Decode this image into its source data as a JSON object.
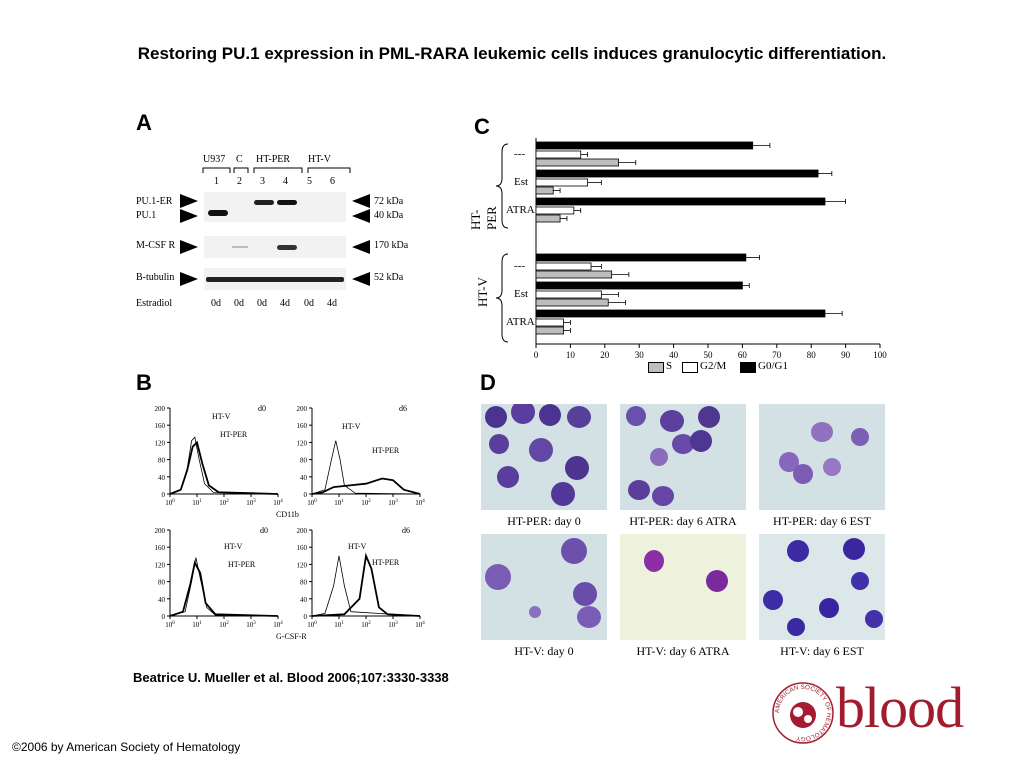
{
  "title": "Restoring PU.1 expression in PML-RARA leukemic cells induces granulocytic differentiation.",
  "citation": "Beatrice U. Mueller et al. Blood 2006;107:3330-3338",
  "copyright": "©2006 by American Society of Hematology",
  "logo": {
    "word": "blood",
    "ring_text": "AMERICAN SOCIETY OF HEMATOLOGY"
  },
  "panelA": {
    "letter": "A",
    "group_labels": [
      "U937",
      "C",
      "HT-PER",
      "HT-V"
    ],
    "lanes": [
      "1",
      "2",
      "3",
      "4",
      "5",
      "6"
    ],
    "row_labels": [
      "PU.1-ER",
      "PU.1",
      "M-CSF R",
      "B-tubulin"
    ],
    "kda_labels": [
      "72 kDa",
      "40 kDa",
      "170 kDa",
      "52 kDa"
    ],
    "estradiol_label": "Estradiol",
    "estradiol_values": [
      "0d",
      "0d",
      "0d",
      "4d",
      "0d",
      "4d"
    ]
  },
  "panelB": {
    "letter": "B",
    "y_ticks": [
      "200",
      "160",
      "120",
      "80",
      "40",
      "0"
    ],
    "plots": [
      {
        "tag": "d0",
        "labels": [
          "HT-V",
          "HT-PER"
        ]
      },
      {
        "tag": "d6",
        "labels": [
          "HT-V",
          "HT-PER"
        ]
      },
      {
        "tag": "d0",
        "labels": [
          "HT-V",
          "HT-PER"
        ]
      },
      {
        "tag": "d6",
        "labels": [
          "HT-V",
          "HT-PER"
        ]
      }
    ],
    "xaxis_top": "CD11b",
    "xaxis_bottom": "G-CSF-R"
  },
  "panelC": {
    "letter": "C",
    "groups": [
      "HT-PER",
      "HT-V"
    ],
    "row_labels": [
      "---",
      "Est",
      "ATRA",
      "---",
      "Est",
      "ATRA"
    ],
    "legend_labels": [
      "S",
      "G2/M",
      "G0/G1"
    ]
  },
  "panelD": {
    "letter": "D",
    "captions": [
      "HT-PER: day 0",
      "HT-PER: day 6 ATRA",
      "HT-PER: day 6 EST",
      "HT-V: day 0",
      "HT-V: day 6 ATRA",
      "HT-V: day 6 EST"
    ]
  },
  "chart_data": {
    "type": "bar",
    "orientation": "horizontal",
    "categories": [
      "HT-PER ---",
      "HT-PER Est",
      "HT-PER ATRA",
      "HT-V ---",
      "HT-V Est",
      "HT-V ATRA"
    ],
    "series": [
      {
        "name": "S",
        "color": "#bdbdbd",
        "values": [
          24,
          5,
          7,
          22,
          21,
          8
        ],
        "errors": [
          5,
          2,
          2,
          5,
          5,
          2
        ]
      },
      {
        "name": "G2/M",
        "color": "#ffffff",
        "values": [
          13,
          15,
          11,
          16,
          19,
          8
        ],
        "errors": [
          2,
          4,
          2,
          3,
          5,
          2
        ]
      },
      {
        "name": "G0/G1",
        "color": "#000000",
        "values": [
          63,
          82,
          84,
          61,
          60,
          84
        ],
        "errors": [
          5,
          4,
          6,
          4,
          2,
          5
        ]
      }
    ],
    "xlim": [
      0,
      100
    ],
    "xticks": [
      0,
      10,
      20,
      30,
      40,
      50,
      60,
      70,
      80,
      90,
      100
    ],
    "legend": "bottom"
  }
}
